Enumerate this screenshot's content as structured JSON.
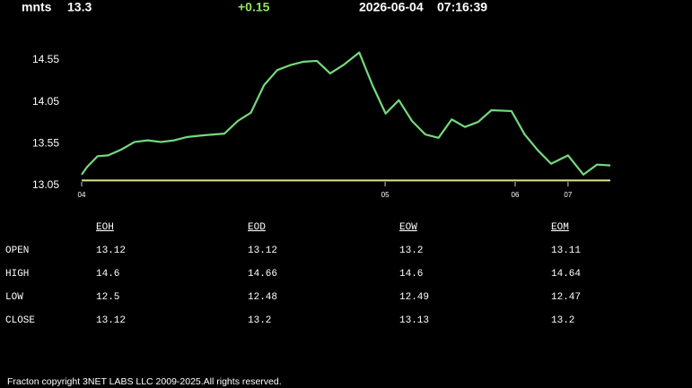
{
  "header": {
    "symbol": "mnts",
    "price": 13.3,
    "change": "+0.15",
    "date": "2026-06-04",
    "time": "07:16:39"
  },
  "chart_data": {
    "type": "line",
    "x": [
      0,
      1,
      3,
      5,
      7.5,
      10,
      12.5,
      15,
      17.5,
      20,
      23,
      27,
      29.5,
      32,
      34.5,
      37,
      39.5,
      42,
      44.5,
      47,
      49.5,
      52.5,
      55,
      57.5,
      60,
      62.5,
      65,
      67.5,
      70,
      72.5,
      75,
      77.5,
      81.3,
      83.8,
      86.3,
      88.8,
      92,
      94.9,
      97.5,
      100
    ],
    "values": [
      13.18,
      13.27,
      13.4,
      13.41,
      13.48,
      13.57,
      13.59,
      13.57,
      13.59,
      13.63,
      13.65,
      13.67,
      13.82,
      13.92,
      14.25,
      14.43,
      14.49,
      14.53,
      14.54,
      14.39,
      14.49,
      14.64,
      14.25,
      13.91,
      14.07,
      13.82,
      13.66,
      13.62,
      13.84,
      13.75,
      13.81,
      13.95,
      13.94,
      13.66,
      13.47,
      13.31,
      13.41,
      13.18,
      13.3,
      13.29
    ],
    "color": "#74d97e",
    "reference_line": 13.11,
    "reference_color": "#e4e48c",
    "xlim": [
      0,
      100
    ],
    "xticks": [
      {
        "value": 0,
        "label": "04"
      },
      {
        "value": 57.4,
        "label": "05"
      },
      {
        "value": 82,
        "label": "06"
      },
      {
        "value": 92,
        "label": "07"
      }
    ],
    "ylim": [
      13.05,
      14.55
    ],
    "yticks": [
      13.05,
      13.55,
      14.05,
      14.55
    ]
  },
  "table": {
    "columns": [
      "EOH",
      "EOD",
      "EOW",
      "EOM"
    ],
    "rows": [
      [
        "OPEN",
        13.12,
        13.12,
        13.2,
        13.11
      ],
      [
        "HIGH",
        14.6,
        14.66,
        14.6,
        14.64
      ],
      [
        "LOW",
        12.5,
        12.48,
        12.49,
        12.47
      ],
      [
        "CLOSE",
        13.12,
        13.2,
        13.13,
        13.2
      ]
    ]
  },
  "footer": "Fracton copyright 3NET LABS LLC 2009-2025.All rights reserved."
}
